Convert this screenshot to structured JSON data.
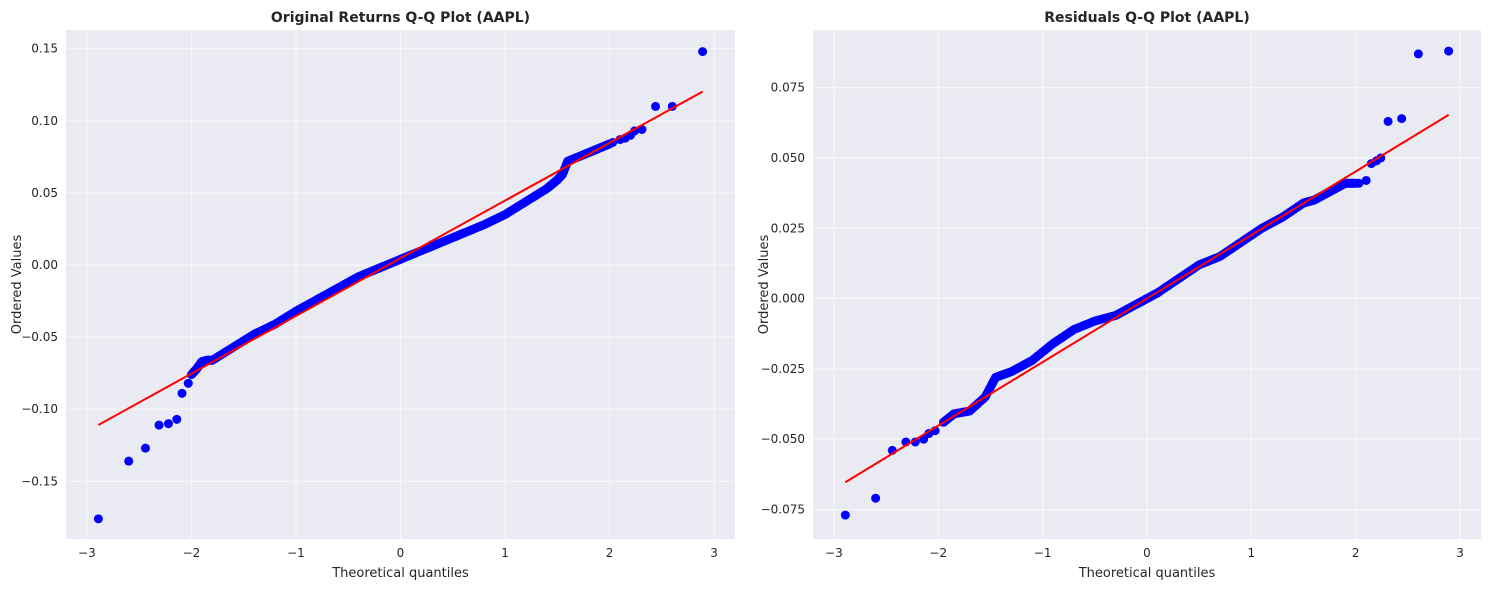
{
  "colors": {
    "background": "#eaeaf2",
    "grid": "#ffffff",
    "points": "#0000ff",
    "line": "#ff0000"
  },
  "chart_data": [
    {
      "type": "scatter",
      "title": "Original Returns Q-Q Plot (AAPL)",
      "xlabel": "Theoretical quantiles",
      "ylabel": "Ordered Values",
      "xlim": [
        -3.2,
        3.2
      ],
      "ylim": [
        -0.19,
        0.163
      ],
      "xticks": [
        -3,
        -2,
        -1,
        0,
        1,
        2,
        3
      ],
      "xtick_labels": [
        "−3",
        "−2",
        "−1",
        "0",
        "1",
        "2",
        "3"
      ],
      "yticks": [
        -0.15,
        -0.1,
        -0.05,
        0.0,
        0.05,
        0.1,
        0.15
      ],
      "ytick_labels": [
        "−0.15",
        "−0.10",
        "−0.05",
        "0.00",
        "0.05",
        "0.10",
        "0.15"
      ],
      "grid": true,
      "fit_line": {
        "slope": 0.04,
        "intercept": 0.0047
      },
      "series": [
        {
          "marker": "circle",
          "x": [
            -2.89,
            -2.6,
            -2.44,
            -2.31,
            -2.22,
            -2.14,
            -2.09,
            -2.03
          ],
          "y": [
            -0.176,
            -0.136,
            -0.127,
            -0.111,
            -0.11,
            -0.107,
            -0.089,
            -0.082
          ]
        },
        {
          "marker": "circle",
          "x": [
            2.03,
            2.1,
            2.15,
            2.2,
            2.24,
            2.31,
            2.44,
            2.6,
            2.89
          ],
          "y": [
            0.085,
            0.087,
            0.088,
            0.09,
            0.093,
            0.094,
            0.11,
            0.11,
            0.148
          ]
        },
        {
          "marker": "circle",
          "x": [
            -2.0,
            -1.95,
            -1.9,
            -1.85,
            -1.8,
            -1.6,
            -1.4,
            -1.2,
            -1.0,
            -0.8,
            -0.6,
            -0.4,
            -0.2,
            0.0,
            0.2,
            0.4,
            0.6,
            0.8,
            1.0,
            1.2,
            1.4,
            1.5,
            1.55,
            1.6,
            1.7,
            1.8,
            1.9,
            2.0
          ],
          "y": [
            -0.076,
            -0.072,
            -0.067,
            -0.066,
            -0.066,
            -0.057,
            -0.048,
            -0.041,
            -0.032,
            -0.024,
            -0.016,
            -0.008,
            -0.002,
            0.004,
            0.01,
            0.016,
            0.022,
            0.028,
            0.035,
            0.044,
            0.053,
            0.059,
            0.063,
            0.072,
            0.075,
            0.078,
            0.081,
            0.084
          ]
        }
      ]
    },
    {
      "type": "scatter",
      "title": "Residuals Q-Q Plot (AAPL)",
      "xlabel": "Theoretical quantiles",
      "ylabel": "Ordered Values",
      "xlim": [
        -3.2,
        3.2
      ],
      "ylim": [
        -0.0855,
        0.0955
      ],
      "xticks": [
        -3,
        -2,
        -1,
        0,
        1,
        2,
        3
      ],
      "xtick_labels": [
        "−3",
        "−2",
        "−1",
        "0",
        "1",
        "2",
        "3"
      ],
      "yticks": [
        -0.075,
        -0.05,
        -0.025,
        0.0,
        0.025,
        0.05,
        0.075
      ],
      "ytick_labels": [
        "−0.075",
        "−0.050",
        "−0.025",
        "0.000",
        "0.025",
        "0.050",
        "0.075"
      ],
      "grid": true,
      "fit_line": {
        "slope": 0.0226,
        "intercept": 0.0
      },
      "series": [
        {
          "marker": "circle",
          "x": [
            -2.89,
            -2.6,
            -2.44,
            -2.31,
            -2.22,
            -2.14,
            -2.09,
            -2.03
          ],
          "y": [
            -0.077,
            -0.071,
            -0.054,
            -0.051,
            -0.051,
            -0.05,
            -0.048,
            -0.047
          ]
        },
        {
          "marker": "circle",
          "x": [
            2.03,
            2.1,
            2.15,
            2.2,
            2.24,
            2.31,
            2.44,
            2.6,
            2.89
          ],
          "y": [
            0.041,
            0.042,
            0.048,
            0.049,
            0.05,
            0.063,
            0.064,
            0.087,
            0.088
          ]
        },
        {
          "marker": "circle",
          "x": [
            -1.95,
            -1.85,
            -1.7,
            -1.55,
            -1.45,
            -1.3,
            -1.1,
            -0.9,
            -0.7,
            -0.5,
            -0.3,
            -0.1,
            0.0,
            0.1,
            0.3,
            0.5,
            0.7,
            0.9,
            1.1,
            1.3,
            1.5,
            1.6,
            1.7,
            1.8,
            1.9,
            2.0
          ],
          "y": [
            -0.044,
            -0.041,
            -0.04,
            -0.035,
            -0.028,
            -0.026,
            -0.022,
            -0.016,
            -0.011,
            -0.008,
            -0.006,
            -0.002,
            0.0,
            0.002,
            0.007,
            0.012,
            0.015,
            0.02,
            0.025,
            0.029,
            0.034,
            0.035,
            0.037,
            0.039,
            0.041,
            0.041
          ]
        }
      ]
    }
  ]
}
